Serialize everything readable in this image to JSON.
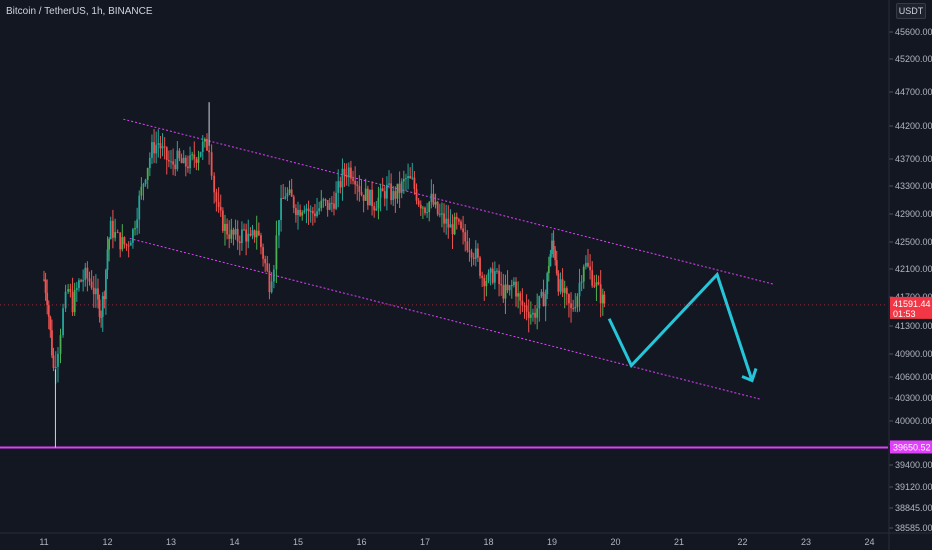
{
  "header": {
    "title": "Bitcoin / TetherUS, 1h, BINANCE",
    "currency": "USDT"
  },
  "chart_data": {
    "type": "candlestick",
    "symbol": "Bitcoin / TetherUS",
    "interval": "1h",
    "exchange": "BINANCE",
    "y_ticks": [
      "45600.00",
      "45200.00",
      "44700.00",
      "44200.00",
      "43700.00",
      "43300.00",
      "42900.00",
      "42500.00",
      "42100.00",
      "41700.00",
      "41300.00",
      "40900.00",
      "40600.00",
      "40300.00",
      "40000.00",
      "39700.00",
      "39400.00",
      "39120.00",
      "38845.00",
      "38585.00"
    ],
    "x_ticks": [
      "11",
      "12",
      "13",
      "14",
      "15",
      "16",
      "17",
      "18",
      "19",
      "20",
      "21",
      "22",
      "23",
      "24"
    ],
    "current_price": {
      "value": "41591.44",
      "countdown": "01:53",
      "color": "#f23645"
    },
    "support_level": {
      "value": "39650.52",
      "color": "#e040fb"
    },
    "channel_color": "#e040fb",
    "projection_color": "#26c6da",
    "up_color": "#26a69a",
    "up_bright": "#4caf50",
    "down_color": "#ef5350",
    "candles_close_path": [
      [
        11.0,
        41950
      ],
      [
        11.05,
        41700
      ],
      [
        11.1,
        41200
      ],
      [
        11.15,
        40700
      ],
      [
        11.22,
        41000
      ],
      [
        11.3,
        41500
      ],
      [
        11.38,
        41800
      ],
      [
        11.45,
        41600
      ],
      [
        11.55,
        41900
      ],
      [
        11.65,
        42000
      ],
      [
        11.75,
        41900
      ],
      [
        11.85,
        41600
      ],
      [
        11.9,
        41500
      ],
      [
        11.95,
        41800
      ],
      [
        12.0,
        42400
      ],
      [
        12.05,
        42700
      ],
      [
        12.12,
        42600
      ],
      [
        12.2,
        42500
      ],
      [
        12.3,
        42450
      ],
      [
        12.4,
        42650
      ],
      [
        12.5,
        43100
      ],
      [
        12.6,
        43500
      ],
      [
        12.7,
        43850
      ],
      [
        12.8,
        43950
      ],
      [
        12.9,
        43750
      ],
      [
        13.0,
        43600
      ],
      [
        13.1,
        43700
      ],
      [
        13.2,
        43600
      ],
      [
        13.3,
        43650
      ],
      [
        13.4,
        43750
      ],
      [
        13.5,
        43900
      ],
      [
        13.6,
        43900
      ],
      [
        13.68,
        43250
      ],
      [
        13.75,
        42900
      ],
      [
        13.85,
        42700
      ],
      [
        13.95,
        42600
      ],
      [
        14.05,
        42550
      ],
      [
        14.15,
        42650
      ],
      [
        14.25,
        42500
      ],
      [
        14.35,
        42700
      ],
      [
        14.45,
        42300
      ],
      [
        14.55,
        41900
      ],
      [
        14.62,
        42200
      ],
      [
        14.7,
        42900
      ],
      [
        14.8,
        43200
      ],
      [
        14.9,
        43100
      ],
      [
        15.0,
        42950
      ],
      [
        15.1,
        43050
      ],
      [
        15.2,
        42900
      ],
      [
        15.3,
        42950
      ],
      [
        15.4,
        43050
      ],
      [
        15.5,
        43000
      ],
      [
        15.6,
        43150
      ],
      [
        15.7,
        43450
      ],
      [
        15.8,
        43550
      ],
      [
        15.9,
        43450
      ],
      [
        16.0,
        43200
      ],
      [
        16.1,
        43150
      ],
      [
        16.2,
        43050
      ],
      [
        16.3,
        43150
      ],
      [
        16.4,
        43250
      ],
      [
        16.5,
        43150
      ],
      [
        16.6,
        43250
      ],
      [
        16.7,
        43400
      ],
      [
        16.8,
        43350
      ],
      [
        16.9,
        43100
      ],
      [
        17.0,
        43000
      ],
      [
        17.1,
        43100
      ],
      [
        17.2,
        42900
      ],
      [
        17.3,
        42800
      ],
      [
        17.4,
        42700
      ],
      [
        17.5,
        42750
      ],
      [
        17.6,
        42550
      ],
      [
        17.7,
        42450
      ],
      [
        17.8,
        42300
      ],
      [
        17.9,
        42000
      ],
      [
        18.0,
        41950
      ],
      [
        18.1,
        42050
      ],
      [
        18.2,
        41800
      ],
      [
        18.3,
        41750
      ],
      [
        18.4,
        41900
      ],
      [
        18.5,
        41600
      ],
      [
        18.6,
        41550
      ],
      [
        18.7,
        41450
      ],
      [
        18.8,
        41600
      ],
      [
        18.9,
        41750
      ],
      [
        18.95,
        42200
      ],
      [
        19.0,
        42450
      ],
      [
        19.05,
        42300
      ],
      [
        19.1,
        41900
      ],
      [
        19.2,
        41700
      ],
      [
        19.3,
        41500
      ],
      [
        19.4,
        41750
      ],
      [
        19.5,
        42200
      ],
      [
        19.6,
        42050
      ],
      [
        19.7,
        41850
      ],
      [
        19.8,
        41650
      ],
      [
        19.85,
        41591
      ]
    ]
  }
}
